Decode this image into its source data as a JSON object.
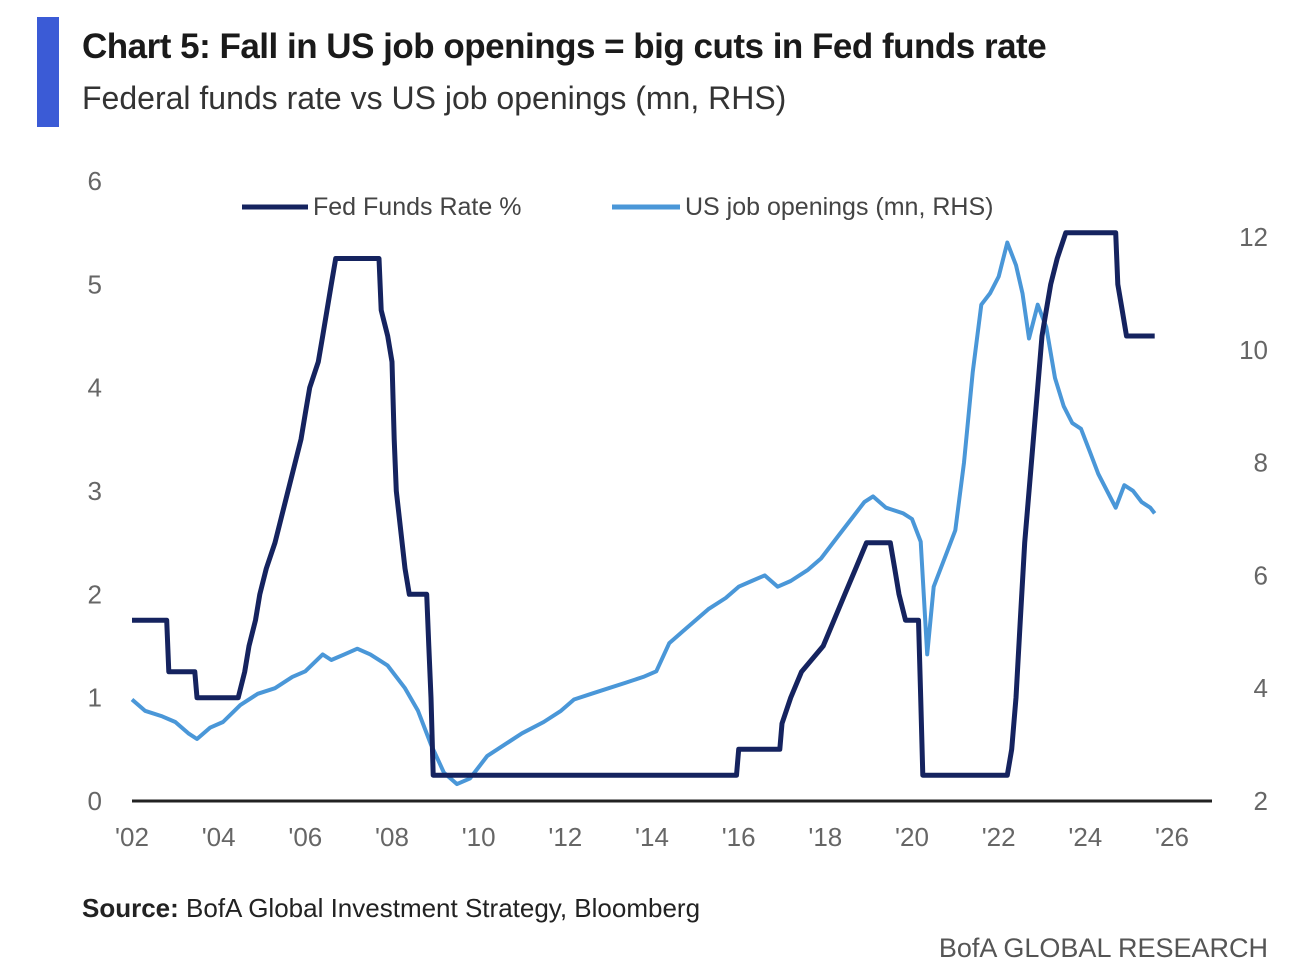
{
  "header": {
    "title": "Chart 5: Fall in US job openings = big cuts in Fed funds rate",
    "subtitle": "Federal funds rate vs US job openings (mn, RHS)"
  },
  "footer": {
    "source_label": "Source:",
    "source_text": " BofA Global Investment Strategy, Bloomberg",
    "brand": "BofA GLOBAL RESEARCH"
  },
  "colors": {
    "accent": "#3b5bd6",
    "fed": "#15235f",
    "jobs": "#4a97d8",
    "axis": "#222222"
  },
  "chart_data": {
    "type": "line",
    "x_ticks": [
      "'02",
      "'04",
      "'06",
      "'08",
      "'10",
      "'12",
      "'14",
      "'16",
      "'18",
      "'20",
      "'22",
      "'24",
      "'26"
    ],
    "xlim": [
      2002,
      2026
    ],
    "ylim_left": [
      0,
      6
    ],
    "ylim_right": [
      2,
      13
    ],
    "y_ticks_left": [
      0,
      1,
      2,
      3,
      4,
      5,
      6
    ],
    "y_ticks_right": [
      2,
      4,
      6,
      8,
      10,
      12
    ],
    "legend_position": "top",
    "grid": false,
    "series": [
      {
        "name": "Fed Funds Rate %",
        "axis": "left",
        "points": [
          [
            2002.0,
            1.75
          ],
          [
            2002.8,
            1.75
          ],
          [
            2002.85,
            1.25
          ],
          [
            2003.45,
            1.25
          ],
          [
            2003.5,
            1.0
          ],
          [
            2004.45,
            1.0
          ],
          [
            2004.6,
            1.25
          ],
          [
            2004.7,
            1.5
          ],
          [
            2004.85,
            1.75
          ],
          [
            2004.95,
            2.0
          ],
          [
            2005.1,
            2.25
          ],
          [
            2005.3,
            2.5
          ],
          [
            2005.45,
            2.75
          ],
          [
            2005.6,
            3.0
          ],
          [
            2005.75,
            3.25
          ],
          [
            2005.9,
            3.5
          ],
          [
            2006.0,
            3.75
          ],
          [
            2006.1,
            4.0
          ],
          [
            2006.3,
            4.25
          ],
          [
            2006.4,
            4.5
          ],
          [
            2006.5,
            4.75
          ],
          [
            2006.6,
            5.0
          ],
          [
            2006.7,
            5.25
          ],
          [
            2007.7,
            5.25
          ],
          [
            2007.75,
            4.75
          ],
          [
            2007.9,
            4.5
          ],
          [
            2008.0,
            4.25
          ],
          [
            2008.05,
            3.5
          ],
          [
            2008.1,
            3.0
          ],
          [
            2008.3,
            2.25
          ],
          [
            2008.4,
            2.0
          ],
          [
            2008.8,
            2.0
          ],
          [
            2008.85,
            1.5
          ],
          [
            2008.9,
            1.0
          ],
          [
            2008.95,
            0.25
          ],
          [
            2015.95,
            0.25
          ],
          [
            2016.0,
            0.5
          ],
          [
            2016.95,
            0.5
          ],
          [
            2017.0,
            0.75
          ],
          [
            2017.2,
            1.0
          ],
          [
            2017.45,
            1.25
          ],
          [
            2017.95,
            1.5
          ],
          [
            2018.2,
            1.75
          ],
          [
            2018.45,
            2.0
          ],
          [
            2018.7,
            2.25
          ],
          [
            2018.95,
            2.5
          ],
          [
            2019.5,
            2.5
          ],
          [
            2019.6,
            2.25
          ],
          [
            2019.7,
            2.0
          ],
          [
            2019.85,
            1.75
          ],
          [
            2020.15,
            1.75
          ],
          [
            2020.2,
            1.0
          ],
          [
            2020.25,
            0.25
          ],
          [
            2022.2,
            0.25
          ],
          [
            2022.3,
            0.5
          ],
          [
            2022.4,
            1.0
          ],
          [
            2022.5,
            1.75
          ],
          [
            2022.6,
            2.5
          ],
          [
            2022.75,
            3.25
          ],
          [
            2022.9,
            4.0
          ],
          [
            2023.0,
            4.5
          ],
          [
            2023.1,
            4.75
          ],
          [
            2023.2,
            5.0
          ],
          [
            2023.35,
            5.25
          ],
          [
            2023.55,
            5.5
          ],
          [
            2024.7,
            5.5
          ],
          [
            2024.75,
            5.0
          ],
          [
            2024.85,
            4.75
          ],
          [
            2024.95,
            4.5
          ],
          [
            2025.6,
            4.5
          ]
        ]
      },
      {
        "name": "US job openings (mn, RHS)",
        "axis": "right",
        "points": [
          [
            2002.0,
            3.8
          ],
          [
            2002.3,
            3.6
          ],
          [
            2002.7,
            3.5
          ],
          [
            2003.0,
            3.4
          ],
          [
            2003.3,
            3.2
          ],
          [
            2003.5,
            3.1
          ],
          [
            2003.8,
            3.3
          ],
          [
            2004.1,
            3.4
          ],
          [
            2004.5,
            3.7
          ],
          [
            2004.9,
            3.9
          ],
          [
            2005.3,
            4.0
          ],
          [
            2005.7,
            4.2
          ],
          [
            2006.0,
            4.3
          ],
          [
            2006.4,
            4.6
          ],
          [
            2006.6,
            4.5
          ],
          [
            2006.9,
            4.6
          ],
          [
            2007.2,
            4.7
          ],
          [
            2007.5,
            4.6
          ],
          [
            2007.9,
            4.4
          ],
          [
            2008.3,
            4.0
          ],
          [
            2008.6,
            3.6
          ],
          [
            2008.9,
            3.0
          ],
          [
            2009.2,
            2.5
          ],
          [
            2009.5,
            2.3
          ],
          [
            2009.8,
            2.4
          ],
          [
            2010.2,
            2.8
          ],
          [
            2010.6,
            3.0
          ],
          [
            2011.0,
            3.2
          ],
          [
            2011.5,
            3.4
          ],
          [
            2011.9,
            3.6
          ],
          [
            2012.2,
            3.8
          ],
          [
            2012.6,
            3.9
          ],
          [
            2013.0,
            4.0
          ],
          [
            2013.4,
            4.1
          ],
          [
            2013.8,
            4.2
          ],
          [
            2014.1,
            4.3
          ],
          [
            2014.4,
            4.8
          ],
          [
            2014.7,
            5.0
          ],
          [
            2015.0,
            5.2
          ],
          [
            2015.3,
            5.4
          ],
          [
            2015.7,
            5.6
          ],
          [
            2016.0,
            5.8
          ],
          [
            2016.3,
            5.9
          ],
          [
            2016.6,
            6.0
          ],
          [
            2016.9,
            5.8
          ],
          [
            2017.2,
            5.9
          ],
          [
            2017.6,
            6.1
          ],
          [
            2017.9,
            6.3
          ],
          [
            2018.3,
            6.7
          ],
          [
            2018.6,
            7.0
          ],
          [
            2018.9,
            7.3
          ],
          [
            2019.1,
            7.4
          ],
          [
            2019.4,
            7.2
          ],
          [
            2019.8,
            7.1
          ],
          [
            2020.0,
            7.0
          ],
          [
            2020.2,
            6.6
          ],
          [
            2020.35,
            4.6
          ],
          [
            2020.5,
            5.8
          ],
          [
            2020.8,
            6.4
          ],
          [
            2021.0,
            6.8
          ],
          [
            2021.2,
            8.0
          ],
          [
            2021.4,
            9.6
          ],
          [
            2021.6,
            10.8
          ],
          [
            2021.8,
            11.0
          ],
          [
            2022.0,
            11.3
          ],
          [
            2022.2,
            11.9
          ],
          [
            2022.4,
            11.5
          ],
          [
            2022.55,
            11.0
          ],
          [
            2022.7,
            10.2
          ],
          [
            2022.9,
            10.8
          ],
          [
            2023.1,
            10.4
          ],
          [
            2023.3,
            9.5
          ],
          [
            2023.5,
            9.0
          ],
          [
            2023.7,
            8.7
          ],
          [
            2023.9,
            8.6
          ],
          [
            2024.1,
            8.2
          ],
          [
            2024.3,
            7.8
          ],
          [
            2024.5,
            7.5
          ],
          [
            2024.7,
            7.2
          ],
          [
            2024.9,
            7.6
          ],
          [
            2025.1,
            7.5
          ],
          [
            2025.3,
            7.3
          ],
          [
            2025.5,
            7.2
          ],
          [
            2025.6,
            7.1
          ]
        ]
      }
    ]
  }
}
